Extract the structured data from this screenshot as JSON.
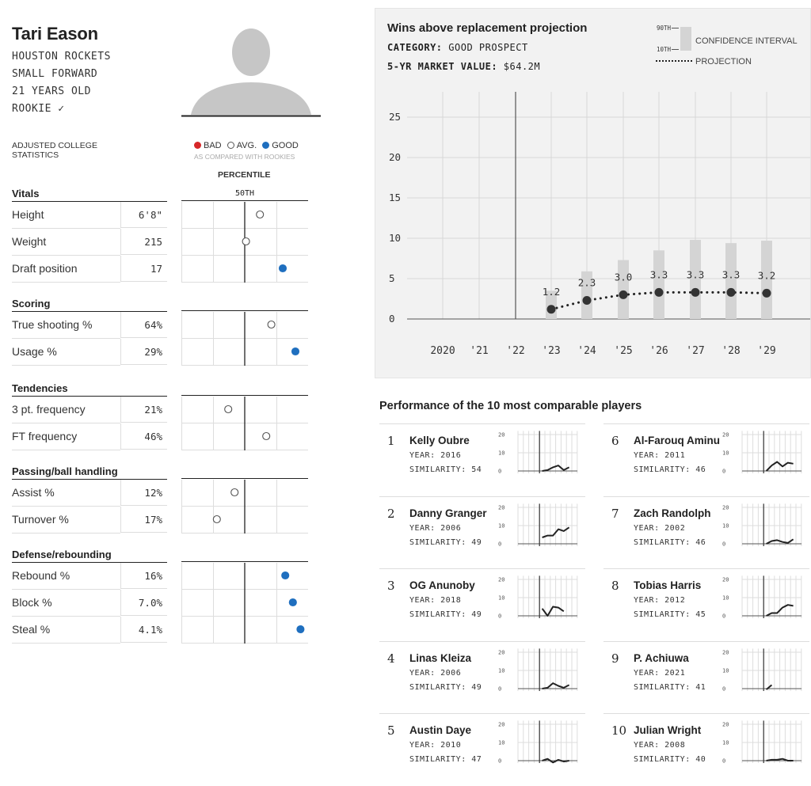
{
  "player": {
    "name": "Tari Eason",
    "team": "HOUSTON ROCKETS",
    "position": "SMALL FORWARD",
    "age": "21 YEARS OLD",
    "status": "ROOKIE ✓"
  },
  "stats_legend": {
    "adjusted_label": "ADJUSTED COLLEGE STATISTICS",
    "bad": "BAD",
    "avg": "AVG.",
    "good": "GOOD",
    "note": "AS COMPARED WITH ROOKIES",
    "percentile": "PERCENTILE",
    "fiftieth": "50TH"
  },
  "colors": {
    "bad": "#d62728",
    "avg": "#ffffff",
    "good": "#1f6fbf"
  },
  "sections": [
    {
      "title": "Vitals",
      "rows": [
        {
          "label": "Height",
          "value": "6'8\"",
          "percentile": 62,
          "rating": "avg"
        },
        {
          "label": "Weight",
          "value": "215",
          "percentile": 51,
          "rating": "avg"
        },
        {
          "label": "Draft position",
          "value": "17",
          "percentile": 80,
          "rating": "good"
        }
      ]
    },
    {
      "title": "Scoring",
      "rows": [
        {
          "label": "True shooting %",
          "value": "64%",
          "percentile": 71,
          "rating": "avg"
        },
        {
          "label": "Usage %",
          "value": "29%",
          "percentile": 90,
          "rating": "good"
        }
      ]
    },
    {
      "title": "Tendencies",
      "rows": [
        {
          "label": "3 pt. frequency",
          "value": "21%",
          "percentile": 37,
          "rating": "avg"
        },
        {
          "label": "FT frequency",
          "value": "46%",
          "percentile": 67,
          "rating": "avg"
        }
      ]
    },
    {
      "title": "Passing/ball handling",
      "rows": [
        {
          "label": "Assist %",
          "value": "12%",
          "percentile": 42,
          "rating": "avg"
        },
        {
          "label": "Turnover %",
          "value": "17%",
          "percentile": 28,
          "rating": "avg"
        }
      ]
    },
    {
      "title": "Defense/rebounding",
      "rows": [
        {
          "label": "Rebound %",
          "value": "16%",
          "percentile": 82,
          "rating": "good"
        },
        {
          "label": "Block %",
          "value": "7.0%",
          "percentile": 88,
          "rating": "good"
        },
        {
          "label": "Steal %",
          "value": "4.1%",
          "percentile": 94,
          "rating": "good"
        }
      ]
    }
  ],
  "projection": {
    "title": "Wins above replacement projection",
    "category_label": "CATEGORY:",
    "category_value": "GOOD PROSPECT",
    "market_label": "5-YR MARKET VALUE:",
    "market_value": "$64.2M",
    "legend_90th": "90TH",
    "legend_10th": "10TH",
    "legend_ci": "CONFIDENCE INTERVAL",
    "legend_projection": "PROJECTION"
  },
  "chart_data": {
    "type": "line",
    "title": "Wins above replacement projection",
    "x_labels": [
      "2020",
      "'21",
      "'22",
      "'23",
      "'24",
      "'25",
      "'26",
      "'27",
      "'28",
      "'29"
    ],
    "y_ticks": [
      "0",
      "5",
      "10",
      "15",
      "20",
      "25"
    ],
    "ylim": [
      0,
      27
    ],
    "series": [
      {
        "name": "PROJECTION",
        "x": [
          "'23",
          "'24",
          "'25",
          "'26",
          "'27",
          "'28",
          "'29"
        ],
        "values": [
          1.2,
          2.3,
          3.0,
          3.3,
          3.3,
          3.3,
          3.2
        ],
        "labels": [
          "1.2",
          "2.3",
          "3.0",
          "3.3",
          "3.3",
          "3.3",
          "3.2"
        ]
      },
      {
        "name": "CONFIDENCE INTERVAL",
        "x": [
          "'23",
          "'24",
          "'25",
          "'26",
          "'27",
          "'28",
          "'29"
        ],
        "low": [
          0,
          0,
          0,
          0,
          0,
          0,
          0
        ],
        "high": [
          3.5,
          5.9,
          7.3,
          8.5,
          9.8,
          9.4,
          9.7
        ]
      }
    ],
    "grid": true
  },
  "comparables": {
    "title": "Performance of the 10 most comparable players",
    "year_label": "YEAR:",
    "similarity_label": "SIMILARITY:",
    "y_ticks": [
      "20",
      "10",
      "0"
    ],
    "players": [
      {
        "rank": "1",
        "name": "Kelly Oubre",
        "year": "2016",
        "similarity": "54",
        "spark": [
          0,
          0.5,
          2,
          3,
          0.5,
          2
        ]
      },
      {
        "rank": "2",
        "name": "Danny Granger",
        "year": "2006",
        "similarity": "49",
        "spark": [
          3.5,
          4.5,
          4.5,
          8,
          7,
          9
        ]
      },
      {
        "rank": "3",
        "name": "OG Anunoby",
        "year": "2018",
        "similarity": "49",
        "spark": [
          4,
          0,
          5,
          4.5,
          2.5
        ]
      },
      {
        "rank": "4",
        "name": "Linas Kleiza",
        "year": "2006",
        "similarity": "49",
        "spark": [
          0,
          0.5,
          3,
          1.5,
          0.5,
          2
        ]
      },
      {
        "rank": "5",
        "name": "Austin Daye",
        "year": "2010",
        "similarity": "47",
        "spark": [
          0,
          1,
          -1,
          0.5,
          -0.5,
          0
        ]
      },
      {
        "rank": "6",
        "name": "Al-Farouq Aminu",
        "year": "2011",
        "similarity": "46",
        "spark": [
          0,
          3,
          5,
          2.5,
          4.5,
          4
        ]
      },
      {
        "rank": "7",
        "name": "Zach Randolph",
        "year": "2002",
        "similarity": "46",
        "spark": [
          0,
          1.5,
          2,
          1,
          0.5,
          2.5
        ]
      },
      {
        "rank": "8",
        "name": "Tobias Harris",
        "year": "2012",
        "similarity": "45",
        "spark": [
          0,
          1.5,
          1.5,
          4.5,
          6,
          5.5
        ]
      },
      {
        "rank": "9",
        "name": "P. Achiuwa",
        "year": "2021",
        "similarity": "41",
        "spark": [
          -0.5,
          2
        ]
      },
      {
        "rank": "10",
        "name": "Julian Wright",
        "year": "2008",
        "similarity": "40",
        "spark": [
          0,
          0.5,
          0.5,
          1,
          0,
          0
        ]
      }
    ]
  }
}
